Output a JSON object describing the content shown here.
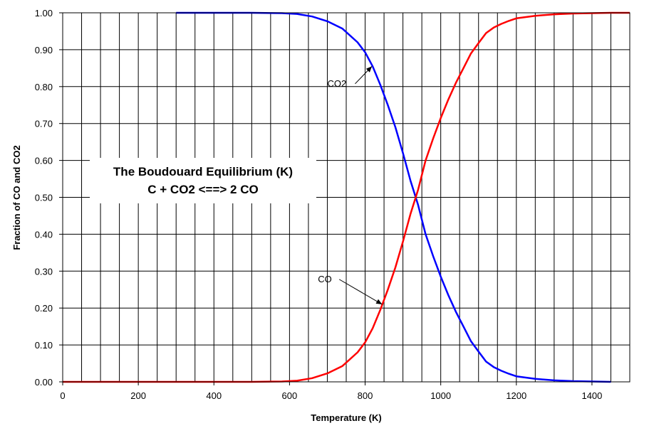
{
  "chart_data": {
    "type": "line",
    "title_lines": [
      "The Boudouard Equilibrium (K)",
      "C + CO2 <==> 2 CO"
    ],
    "xlabel": "Temperature (K)",
    "ylabel": "Fraction of CO and CO2",
    "xlim": [
      0,
      1500
    ],
    "ylim": [
      0,
      1.0
    ],
    "x_ticks": [
      "0",
      "200",
      "400",
      "600",
      "800",
      "1000",
      "1200",
      "1400"
    ],
    "y_ticks": [
      "0.00",
      "0.10",
      "0.20",
      "0.30",
      "0.40",
      "0.50",
      "0.60",
      "0.70",
      "0.80",
      "0.90",
      "1.00"
    ],
    "grid": true,
    "series": [
      {
        "name": "CO2",
        "color": "#0000ff",
        "x": [
          300,
          400,
          500,
          580,
          620,
          660,
          700,
          740,
          780,
          800,
          820,
          840,
          860,
          880,
          900,
          920,
          940,
          960,
          980,
          1000,
          1020,
          1040,
          1060,
          1080,
          1100,
          1120,
          1140,
          1160,
          1180,
          1200,
          1250,
          1300,
          1350,
          1400,
          1450
        ],
        "y": [
          1.0,
          1.0,
          1.0,
          0.999,
          0.997,
          0.99,
          0.977,
          0.957,
          0.92,
          0.893,
          0.855,
          0.805,
          0.75,
          0.69,
          0.62,
          0.545,
          0.48,
          0.4,
          0.34,
          0.285,
          0.235,
          0.19,
          0.15,
          0.11,
          0.082,
          0.055,
          0.04,
          0.03,
          0.022,
          0.015,
          0.008,
          0.004,
          0.002,
          0.001,
          0.0
        ]
      },
      {
        "name": "CO",
        "color": "#ff0000",
        "x": [
          0,
          100,
          200,
          300,
          400,
          500,
          580,
          620,
          660,
          700,
          740,
          780,
          800,
          820,
          840,
          860,
          880,
          900,
          920,
          940,
          960,
          980,
          1000,
          1020,
          1040,
          1060,
          1080,
          1100,
          1120,
          1140,
          1160,
          1180,
          1200,
          1250,
          1300,
          1350,
          1400,
          1450,
          1500
        ],
        "y": [
          0.0,
          0.0,
          0.0,
          0.0,
          0.0,
          0.0,
          0.001,
          0.003,
          0.01,
          0.023,
          0.043,
          0.08,
          0.107,
          0.145,
          0.195,
          0.25,
          0.31,
          0.38,
          0.455,
          0.52,
          0.6,
          0.66,
          0.715,
          0.765,
          0.81,
          0.85,
          0.89,
          0.918,
          0.945,
          0.96,
          0.97,
          0.978,
          0.985,
          0.992,
          0.996,
          0.998,
          0.999,
          1.0,
          1.0
        ]
      }
    ],
    "annotations": [
      {
        "text": "CO2",
        "series": "CO2",
        "label_at": [
          700,
          0.8
        ],
        "arrow_to": [
          818,
          0.855
        ]
      },
      {
        "text": "CO",
        "series": "CO",
        "label_at": [
          675,
          0.27
        ],
        "arrow_to": [
          845,
          0.21
        ]
      }
    ]
  }
}
